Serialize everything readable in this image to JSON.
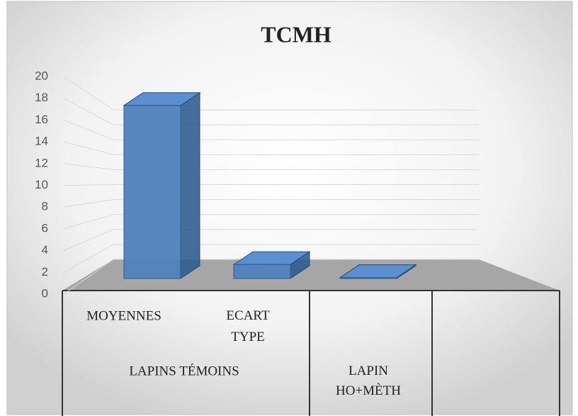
{
  "chart_data": {
    "type": "bar3d",
    "title": "TCMH",
    "groups": [
      {
        "name": "LAPINS TÉMOINS",
        "categories": [
          "MOYENNES",
          "ECART TYPE"
        ],
        "values": [
          18.5,
          1.5
        ]
      },
      {
        "name": "LAPIN HO+MÈTH",
        "categories": [
          null
        ],
        "values": [
          0.1
        ]
      }
    ],
    "color": "#4f81bd",
    "ylim": [
      0,
      20
    ],
    "yticks": [
      0,
      2,
      4,
      6,
      8,
      10,
      12,
      14,
      16,
      18,
      20
    ],
    "grid": true
  }
}
